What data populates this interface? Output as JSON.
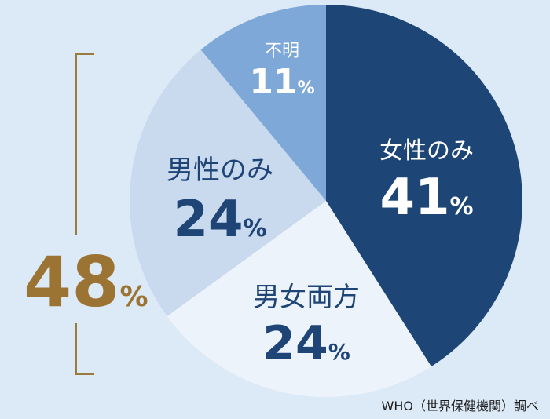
{
  "chart_data": {
    "type": "pie",
    "categories": [
      "女性のみ",
      "男女両方",
      "男性のみ",
      "不明"
    ],
    "values": [
      41,
      24,
      24,
      11
    ],
    "value_suffix": "%",
    "colors": [
      "#1d4576",
      "#edf3fb",
      "#c9d9ee",
      "#7ea8d8"
    ],
    "background": "#dce9f6",
    "bracket_total": {
      "value": "48",
      "suffix": "%",
      "color": "#9b7433"
    },
    "source": "WHO（世界保健機関）調べ"
  },
  "labels": {
    "female": {
      "name": "女性のみ",
      "num": "41",
      "pct": "%"
    },
    "both": {
      "name": "男女両方",
      "num": "24",
      "pct": "%"
    },
    "male": {
      "name": "男性のみ",
      "num": "24",
      "pct": "%"
    },
    "unknown": {
      "name": "不明",
      "num": "11",
      "pct": "%"
    }
  }
}
